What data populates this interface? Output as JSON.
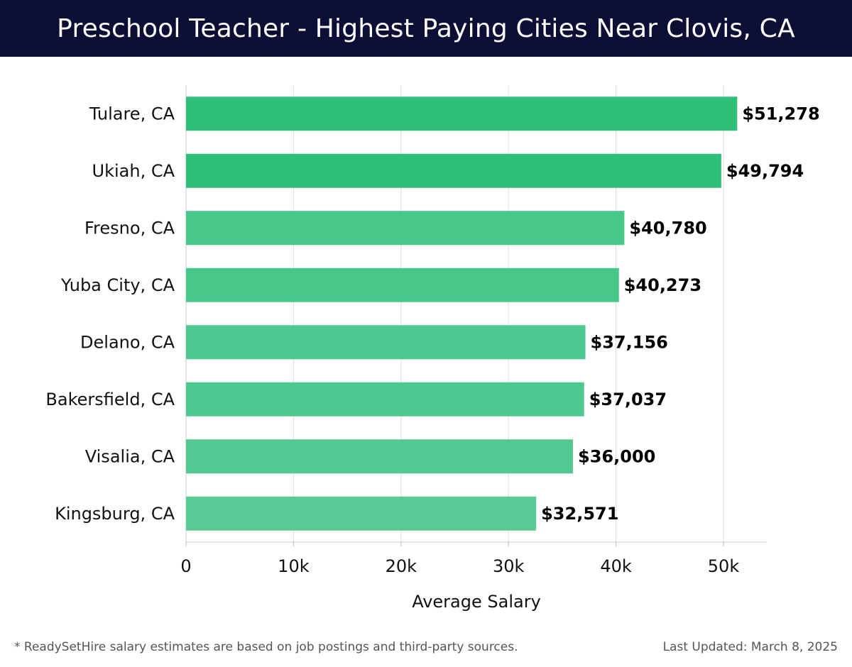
{
  "header": {
    "title": "Preschool Teacher - Highest Paying Cities Near Clovis, CA"
  },
  "chart_data": {
    "type": "bar",
    "orientation": "horizontal",
    "title": "Preschool Teacher - Highest Paying Cities Near Clovis, CA",
    "xlabel": "Average Salary",
    "ylabel": "",
    "categories": [
      "Tulare, CA",
      "Ukiah, CA",
      "Fresno, CA",
      "Yuba City, CA",
      "Delano, CA",
      "Bakersfield, CA",
      "Visalia, CA",
      "Kingsburg, CA"
    ],
    "values": [
      51278,
      49794,
      40780,
      40273,
      37156,
      37037,
      36000,
      32571
    ],
    "value_labels": [
      "$51,278",
      "$49,794",
      "$40,780",
      "$40,273",
      "$37,156",
      "$37,037",
      "$36,000",
      "$32,571"
    ],
    "xlim": [
      0,
      54000
    ],
    "xticks": [
      0,
      10000,
      20000,
      30000,
      40000,
      50000
    ],
    "xtick_labels": [
      "0",
      "10k",
      "20k",
      "30k",
      "40k",
      "50k"
    ],
    "grid": true,
    "bar_colors": [
      "#2ebf78",
      "#2ebf78",
      "#47c78a",
      "#47c78a",
      "#4ec88f",
      "#4ec88f",
      "#52c991",
      "#58cb95"
    ]
  },
  "footer": {
    "note": "* ReadySetHire salary estimates are based on job postings and third-party sources.",
    "updated": "Last Updated: March 8, 2025"
  }
}
